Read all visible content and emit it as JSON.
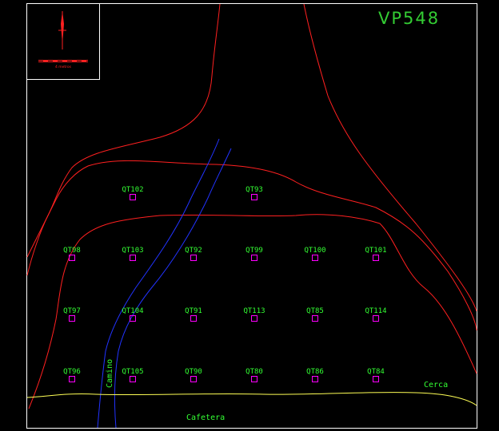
{
  "title": "VP548",
  "colors": {
    "background": "#000000",
    "frame": "#ffffff",
    "contour": "#ff2020",
    "road": "#2233ff",
    "fence": "#ffff55",
    "label": "#33ff33",
    "plot": "#ff00ff"
  },
  "legend": {
    "north_arrow_icon": "north-arrow-icon",
    "scale_text": "4 metros"
  },
  "labels": {
    "road": "Camino",
    "fence": "Cerca",
    "area": "Cafetera"
  },
  "plots": [
    {
      "id": "QT102"
    },
    {
      "id": "QT93"
    },
    {
      "id": "QT98"
    },
    {
      "id": "QT103"
    },
    {
      "id": "QT92"
    },
    {
      "id": "QT99"
    },
    {
      "id": "QT100"
    },
    {
      "id": "QT101"
    },
    {
      "id": "QT97"
    },
    {
      "id": "QT104"
    },
    {
      "id": "QT91"
    },
    {
      "id": "QT113"
    },
    {
      "id": "QT85"
    },
    {
      "id": "QT114"
    },
    {
      "id": "QT96"
    },
    {
      "id": "QT105"
    },
    {
      "id": "QT90"
    },
    {
      "id": "QT80"
    },
    {
      "id": "QT86"
    },
    {
      "id": "QT84"
    }
  ]
}
